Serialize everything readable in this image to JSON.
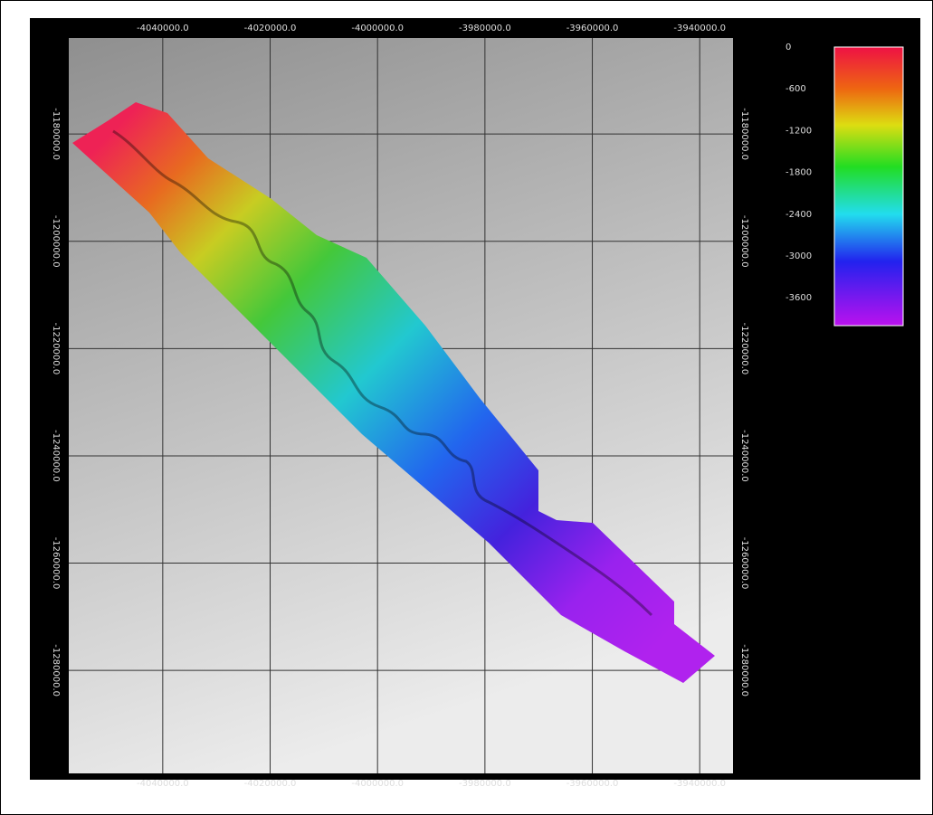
{
  "map": {
    "xlim": [
      -4057500,
      -3933800
    ],
    "ylim": [
      -1162100,
      -1299200
    ],
    "xticks": [
      {
        "value": -4040000,
        "label": "-4040000.0"
      },
      {
        "value": -4020000,
        "label": "-4020000.0"
      },
      {
        "value": -4000000,
        "label": "-4000000.0"
      },
      {
        "value": -3980000,
        "label": "-3980000.0"
      },
      {
        "value": -3960000,
        "label": "-3960000.0"
      },
      {
        "value": -3940000,
        "label": "-3940000.0"
      }
    ],
    "yticks": [
      {
        "value": -1180000,
        "label": "-1180000.0"
      },
      {
        "value": -1200000,
        "label": "-1200000.0"
      },
      {
        "value": -1220000,
        "label": "-1220000.0"
      },
      {
        "value": -1240000,
        "label": "-1240000.0"
      },
      {
        "value": -1260000,
        "label": "-1260000.0"
      },
      {
        "value": -1280000,
        "label": "-1280000.0"
      }
    ],
    "colorbar": {
      "lim": [
        0,
        -4000
      ],
      "ticks": [
        0,
        -600,
        -1200,
        -1800,
        -2400,
        -3000,
        -3600
      ]
    }
  }
}
